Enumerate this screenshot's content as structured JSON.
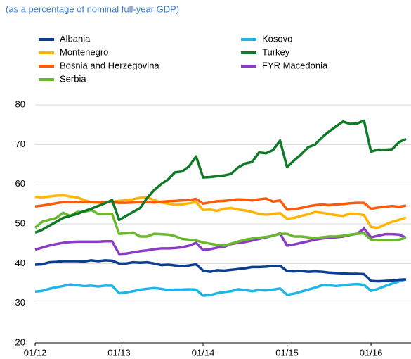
{
  "chart_data": {
    "type": "line",
    "subtitle": "(as a percentage of nominal full-year GDP)",
    "categories": [
      "01/12",
      null,
      null,
      null,
      null,
      null,
      null,
      null,
      null,
      null,
      null,
      null,
      "01/13",
      null,
      null,
      null,
      null,
      null,
      null,
      null,
      null,
      null,
      null,
      null,
      "01/14",
      null,
      null,
      null,
      null,
      null,
      null,
      null,
      null,
      null,
      null,
      null,
      "01/15",
      null,
      null,
      null,
      null,
      null,
      null,
      null,
      null,
      null,
      null,
      null,
      "01/16",
      null,
      null,
      null,
      null,
      null
    ],
    "ylim": [
      20,
      80
    ],
    "yticks": [
      20,
      30,
      40,
      50,
      60,
      70,
      80
    ],
    "grid": true,
    "series": [
      {
        "name": "Albania",
        "color": "#0b3d91",
        "values": [
          39.7,
          39.8,
          40.3,
          40.4,
          40.6,
          40.6,
          40.6,
          40.5,
          40.8,
          40.6,
          40.8,
          40.7,
          40.0,
          40.0,
          40.3,
          40.2,
          40.3,
          40.0,
          39.6,
          39.7,
          39.5,
          39.3,
          39.5,
          39.8,
          38.2,
          37.9,
          38.3,
          38.2,
          38.4,
          38.6,
          38.8,
          39.1,
          39.1,
          39.2,
          39.4,
          39.4,
          38.1,
          38.0,
          38.1,
          37.9,
          38.0,
          37.9,
          37.7,
          37.6,
          37.5,
          37.4,
          37.4,
          37.3,
          35.6,
          35.5,
          35.6,
          35.7,
          35.9,
          36.0
        ]
      },
      {
        "name": "Montenegro",
        "color": "#ffb400",
        "values": [
          56.8,
          56.7,
          56.9,
          57.1,
          57.2,
          56.9,
          56.7,
          56.0,
          55.5,
          55.3,
          55.4,
          55.6,
          55.8,
          56.0,
          56.2,
          56.6,
          56.7,
          56.0,
          55.4,
          55.1,
          54.8,
          54.9,
          55.2,
          55.5,
          53.5,
          53.6,
          53.3,
          53.8,
          54.0,
          53.6,
          53.4,
          53.0,
          52.5,
          52.3,
          52.5,
          52.7,
          51.3,
          51.5,
          52.0,
          52.4,
          53.0,
          52.8,
          52.5,
          52.2,
          52.0,
          52.6,
          52.5,
          52.2,
          49.2,
          49.0,
          49.8,
          50.5,
          51.0,
          51.6
        ]
      },
      {
        "name": "Bosnia and Herzegovina",
        "color": "#ff5a0a",
        "values": [
          54.4,
          54.6,
          54.9,
          55.2,
          55.5,
          55.5,
          55.5,
          55.5,
          55.5,
          55.5,
          55.4,
          55.5,
          55.3,
          55.3,
          55.4,
          55.5,
          55.5,
          55.4,
          55.6,
          55.7,
          55.8,
          55.9,
          56.0,
          56.3,
          55.1,
          55.4,
          55.7,
          55.8,
          56.0,
          56.2,
          56.1,
          55.9,
          56.2,
          56.4,
          55.6,
          55.9,
          53.6,
          53.7,
          54.0,
          54.4,
          54.7,
          54.9,
          54.7,
          54.9,
          55.0,
          55.2,
          55.3,
          55.3,
          53.8,
          54.1,
          54.3,
          54.5,
          54.3,
          54.6
        ]
      },
      {
        "name": "Serbia",
        "color": "#6ab82c",
        "values": [
          49.0,
          50.5,
          51.0,
          51.5,
          52.8,
          52.0,
          53.0,
          53.0,
          53.5,
          52.5,
          52.5,
          52.5,
          47.5,
          47.6,
          47.8,
          46.8,
          46.8,
          47.5,
          47.4,
          47.3,
          46.9,
          46.2,
          46.0,
          45.8,
          45.3,
          45.0,
          44.7,
          44.5,
          45.0,
          45.5,
          46.0,
          46.3,
          46.5,
          46.7,
          47.0,
          47.5,
          47.5,
          46.8,
          46.8,
          46.6,
          46.4,
          46.6,
          46.8,
          46.8,
          47.0,
          47.3,
          47.5,
          47.6,
          46.0,
          45.9,
          45.9,
          45.9,
          46.0,
          46.5
        ]
      },
      {
        "name": "Kosovo",
        "color": "#1fb5e8",
        "values": [
          32.9,
          33.1,
          33.6,
          34.0,
          34.3,
          34.7,
          34.5,
          34.3,
          34.4,
          34.2,
          34.4,
          34.4,
          32.5,
          32.7,
          33.0,
          33.4,
          33.6,
          33.8,
          33.6,
          33.3,
          33.4,
          33.4,
          33.5,
          33.4,
          31.9,
          32.0,
          32.5,
          32.8,
          33.0,
          33.5,
          33.3,
          33.0,
          33.3,
          33.2,
          33.4,
          33.7,
          32.1,
          32.4,
          32.9,
          33.4,
          33.9,
          34.5,
          34.5,
          34.3,
          34.5,
          34.7,
          34.8,
          34.6,
          33.1,
          33.6,
          34.3,
          34.9,
          35.5,
          36.0
        ]
      },
      {
        "name": "Turkey",
        "color": "#0f7a28",
        "values": [
          47.8,
          48.5,
          49.5,
          50.5,
          51.5,
          52.0,
          52.5,
          53.2,
          53.8,
          54.5,
          55.2,
          56.0,
          51.0,
          52.0,
          53.0,
          54.0,
          56.5,
          58.5,
          60.0,
          61.2,
          63.0,
          63.2,
          64.5,
          67.0,
          61.7,
          61.8,
          62.0,
          62.2,
          62.6,
          64.2,
          65.2,
          65.6,
          68.0,
          67.8,
          68.6,
          71.0,
          64.3,
          66.0,
          67.5,
          69.3,
          70.0,
          71.8,
          73.3,
          74.6,
          75.8,
          75.2,
          75.3,
          76.0,
          68.2,
          68.7,
          68.7,
          68.8,
          70.6,
          71.4
        ]
      },
      {
        "name": "FYR Macedonia",
        "color": "#8a3cc4",
        "values": [
          43.5,
          44.0,
          44.5,
          44.9,
          45.2,
          45.4,
          45.5,
          45.5,
          45.5,
          45.5,
          45.6,
          45.6,
          42.4,
          42.5,
          42.8,
          43.1,
          43.3,
          43.6,
          43.8,
          43.8,
          43.9,
          44.1,
          44.5,
          45.2,
          43.4,
          43.6,
          44.0,
          44.2,
          44.9,
          45.2,
          45.4,
          45.8,
          46.2,
          46.6,
          47.0,
          47.6,
          44.5,
          44.8,
          45.2,
          45.6,
          46.0,
          46.3,
          46.5,
          46.6,
          46.8,
          47.2,
          47.5,
          48.8,
          46.6,
          47.0,
          47.4,
          47.4,
          47.3,
          46.5
        ]
      }
    ]
  }
}
